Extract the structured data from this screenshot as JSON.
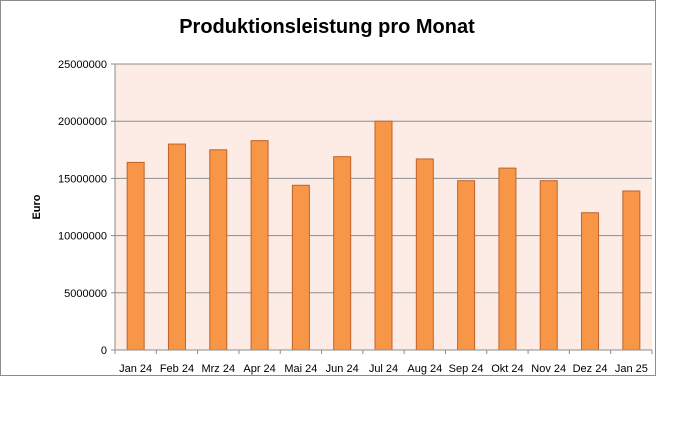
{
  "chart_data": {
    "type": "bar",
    "title": "Produktionsleistung pro Monat",
    "ylabel": "Euro",
    "xlabel": "",
    "categories": [
      "Jan 24",
      "Feb 24",
      "Mrz 24",
      "Apr 24",
      "Mai 24",
      "Jun 24",
      "Jul 24",
      "Aug 24",
      "Sep 24",
      "Okt 24",
      "Nov 24",
      "Dez 24",
      "Jan 25"
    ],
    "values": [
      16400000,
      18000000,
      17500000,
      18300000,
      14400000,
      16900000,
      20000000,
      16700000,
      14800000,
      15900000,
      14800000,
      12000000,
      13900000
    ],
    "ylim": [
      0,
      25000000
    ],
    "yticks": [
      "0",
      "5000000",
      "10000000",
      "15000000",
      "20000000",
      "25000000"
    ],
    "grid": true,
    "legend": "none",
    "colors": {
      "bar_fill": "#f79646",
      "bar_stroke": "#c0622a",
      "plot_background": "#fdece6",
      "gridline": "#8c8c8c"
    }
  }
}
